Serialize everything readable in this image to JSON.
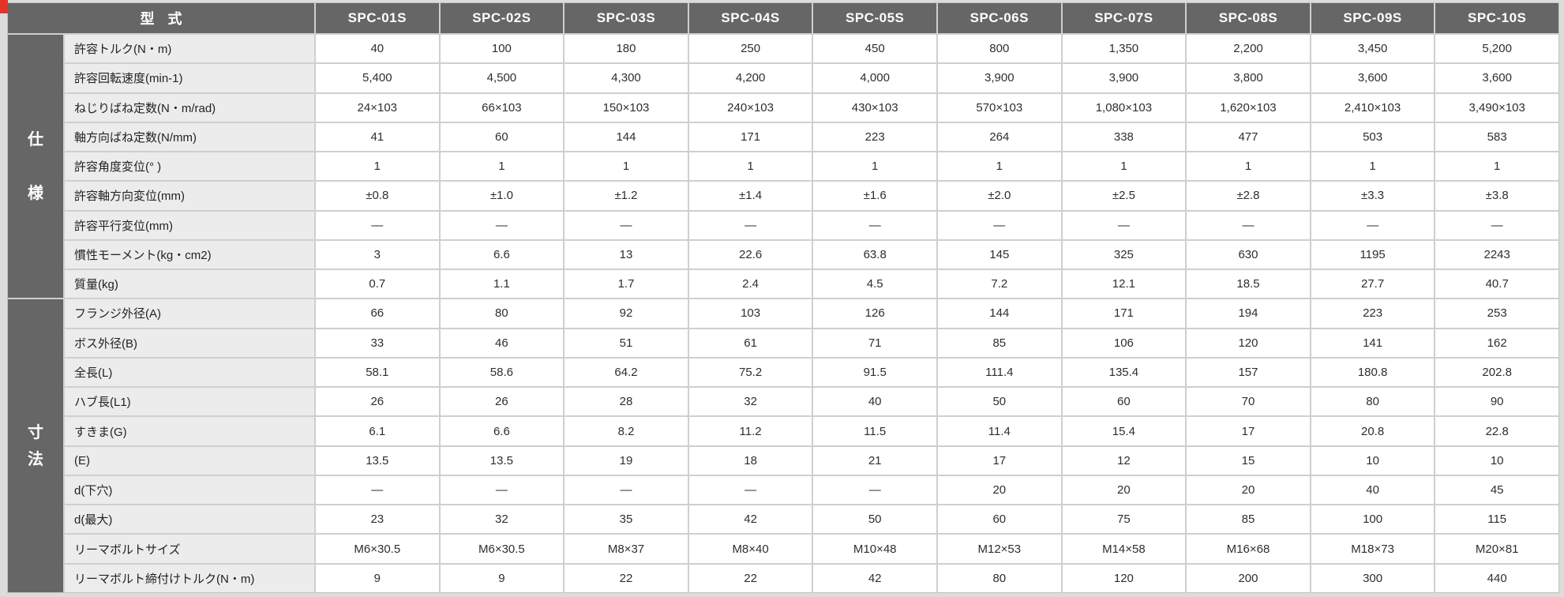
{
  "page": {
    "corner_label": "型 式",
    "models": [
      "SPC-01S",
      "SPC-02S",
      "SPC-03S",
      "SPC-04S",
      "SPC-05S",
      "SPC-06S",
      "SPC-07S",
      "SPC-08S",
      "SPC-09S",
      "SPC-10S"
    ],
    "sections": [
      {
        "name": "spec",
        "vertical_label": "仕様",
        "chars": [
          "仕",
          "様"
        ],
        "rows": [
          {
            "label": "許容トルク(N・m)",
            "values": [
              "40",
              "100",
              "180",
              "250",
              "450",
              "800",
              "1,350",
              "2,200",
              "3,450",
              "5,200"
            ]
          },
          {
            "label": "許容回転速度(min-1)",
            "values": [
              "5,400",
              "4,500",
              "4,300",
              "4,200",
              "4,000",
              "3,900",
              "3,900",
              "3,800",
              "3,600",
              "3,600"
            ]
          },
          {
            "label": "ねじりばね定数(N・m/rad)",
            "values": [
              "24×103",
              "66×103",
              "150×103",
              "240×103",
              "430×103",
              "570×103",
              "1,080×103",
              "1,620×103",
              "2,410×103",
              "3,490×103"
            ]
          },
          {
            "label": "軸方向ばね定数(N/mm)",
            "values": [
              "41",
              "60",
              "144",
              "171",
              "223",
              "264",
              "338",
              "477",
              "503",
              "583"
            ]
          },
          {
            "label": "許容角度変位(° )",
            "values": [
              "1",
              "1",
              "1",
              "1",
              "1",
              "1",
              "1",
              "1",
              "1",
              "1"
            ]
          },
          {
            "label": "許容軸方向変位(mm)",
            "values": [
              "±0.8",
              "±1.0",
              "±1.2",
              "±1.4",
              "±1.6",
              "±2.0",
              "±2.5",
              "±2.8",
              "±3.3",
              "±3.8"
            ]
          },
          {
            "label": "許容平行変位(mm)",
            "values": [
              "—",
              "—",
              "—",
              "—",
              "—",
              "—",
              "—",
              "—",
              "—",
              "—"
            ]
          },
          {
            "label": "慣性モーメント(kg・cm2)",
            "values": [
              "3",
              "6.6",
              "13",
              "22.6",
              "63.8",
              "145",
              "325",
              "630",
              "1195",
              "2243"
            ]
          },
          {
            "label": "質量(kg)",
            "values": [
              "0.7",
              "1.1",
              "1.7",
              "2.4",
              "4.5",
              "7.2",
              "12.1",
              "18.5",
              "27.7",
              "40.7"
            ]
          }
        ]
      },
      {
        "name": "dimensions",
        "vertical_label": "寸法",
        "chars": [
          "寸",
          "法"
        ],
        "rows": [
          {
            "label": "フランジ外径(A)",
            "values": [
              "66",
              "80",
              "92",
              "103",
              "126",
              "144",
              "171",
              "194",
              "223",
              "253"
            ]
          },
          {
            "label": "ボス外径(B)",
            "values": [
              "33",
              "46",
              "51",
              "61",
              "71",
              "85",
              "106",
              "120",
              "141",
              "162"
            ]
          },
          {
            "label": "全長(L)",
            "values": [
              "58.1",
              "58.6",
              "64.2",
              "75.2",
              "91.5",
              "111.4",
              "135.4",
              "157",
              "180.8",
              "202.8"
            ]
          },
          {
            "label": "ハブ長(L1)",
            "values": [
              "26",
              "26",
              "28",
              "32",
              "40",
              "50",
              "60",
              "70",
              "80",
              "90"
            ]
          },
          {
            "label": "すきま(G)",
            "values": [
              "6.1",
              "6.6",
              "8.2",
              "11.2",
              "11.5",
              "11.4",
              "15.4",
              "17",
              "20.8",
              "22.8"
            ]
          },
          {
            "label": "(E)",
            "values": [
              "13.5",
              "13.5",
              "19",
              "18",
              "21",
              "17",
              "12",
              "15",
              "10",
              "10"
            ]
          },
          {
            "label": "d(下穴)",
            "values": [
              "—",
              "—",
              "—",
              "—",
              "—",
              "20",
              "20",
              "20",
              "40",
              "45"
            ]
          },
          {
            "label": "d(最大)",
            "values": [
              "23",
              "32",
              "35",
              "42",
              "50",
              "60",
              "75",
              "85",
              "100",
              "115"
            ]
          },
          {
            "label": "リーマボルトサイズ",
            "values": [
              "M6×30.5",
              "M6×30.5",
              "M8×37",
              "M8×40",
              "M10×48",
              "M12×53",
              "M14×58",
              "M16×68",
              "M18×73",
              "M20×81"
            ]
          },
          {
            "label": "リーマボルト締付けトルク(N・m)",
            "values": [
              "9",
              "9",
              "22",
              "22",
              "42",
              "80",
              "120",
              "200",
              "300",
              "440"
            ]
          }
        ]
      }
    ],
    "colors": {
      "header_bg": "#666666",
      "label_bg": "#ececec",
      "cell_bg": "#ffffff",
      "grid": "#cfcfcf",
      "text": "#2e2e2e",
      "header_text": "#ffffff",
      "accent_red": "#e5332a"
    }
  }
}
